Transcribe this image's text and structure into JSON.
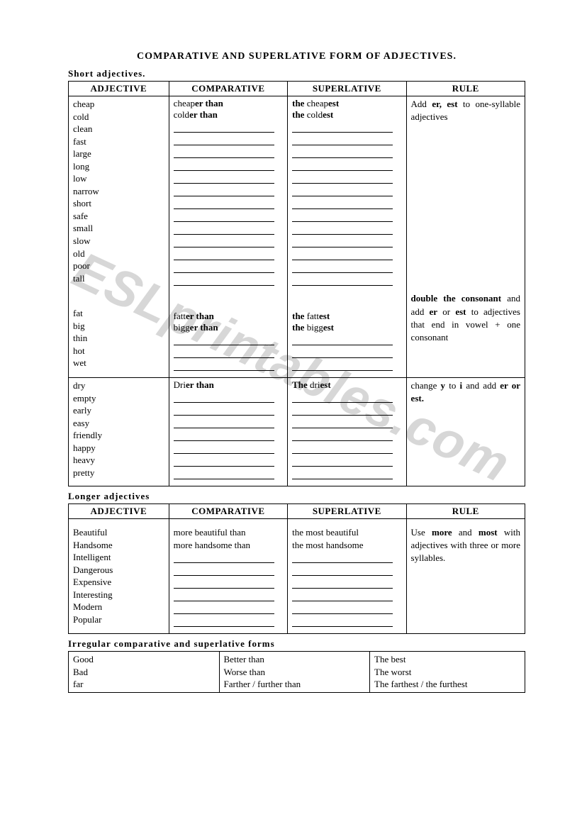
{
  "title": "COMPARATIVE AND SUPERLATIVE FORM OF ADJECTIVES.",
  "watermark": "ESLprintables.com",
  "short": {
    "label": "Short adjectives.",
    "headers": [
      "ADJECTIVE",
      "COMPARATIVE",
      "SUPERLATIVE",
      "RULE"
    ],
    "group1": {
      "adjectives": [
        "cheap",
        "cold",
        "clean",
        "fast",
        "large",
        "long",
        "low",
        "narrow",
        "short",
        "safe",
        "small",
        "slow",
        "old",
        "poor",
        "tall"
      ],
      "comparative": [
        {
          "prefix": "cheap",
          "bold": "er than"
        },
        {
          "prefix": "cold",
          "bold": "er than"
        }
      ],
      "superlative": [
        {
          "prefix": "the ",
          "mid": "cheap",
          "bold": "est"
        },
        {
          "prefix": "the ",
          "mid": "cold",
          "bold": "est"
        }
      ],
      "blank_lines": 13,
      "rule_pre": "Add ",
      "rule_bold": "er, est",
      "rule_post": " to one-syllable adjectives"
    },
    "group2": {
      "adjectives": [
        "fat",
        "big",
        "thin",
        "hot",
        "wet"
      ],
      "comparative": [
        {
          "prefix": "fatt",
          "bold": "er than"
        },
        {
          "prefix": "bigg",
          "bold": "er   than"
        }
      ],
      "superlative": [
        {
          "prefix": "the ",
          "mid": "fatt",
          "bold": "est"
        },
        {
          "prefix": "the ",
          "mid": "bigg",
          "bold": "est"
        }
      ],
      "blank_lines": 3,
      "rule_bold1": "double the consonant",
      "rule_mid": " and add ",
      "rule_bold2": "er",
      "rule_mid2": " or ",
      "rule_bold3": "est",
      "rule_end": " to adjectives that end in vowel + one consonant"
    },
    "group3": {
      "adjectives": [
        "dry",
        "empty",
        "early",
        "easy",
        "friendly",
        "happy",
        "heavy",
        "pretty"
      ],
      "comparative": [
        {
          "prefix": "Dri",
          "bold": "er than"
        }
      ],
      "superlative": [
        {
          "prefix": "The ",
          "mid": "dri",
          "bold": "est"
        }
      ],
      "blank_lines": 7,
      "rule_pre": "change ",
      "rule_bold1": "y",
      "rule_mid1": " to ",
      "rule_bold2": "i",
      "rule_mid2": " and add ",
      "rule_bold3": "er or est."
    }
  },
  "longer": {
    "label": "Longer adjectives",
    "headers": [
      "ADJECTIVE",
      "COMPARATIVE",
      "SUPERLATIVE",
      "RULE"
    ],
    "adjectives": [
      "Beautiful",
      "Handsome",
      "Intelligent",
      "Dangerous",
      "Expensive",
      "Interesting",
      "Modern",
      "Popular"
    ],
    "comparative": [
      "more beautiful  than",
      "more handsome than"
    ],
    "superlative": [
      "the most beautiful",
      "the most handsome"
    ],
    "blank_lines": 6,
    "rule_pre": "Use ",
    "rule_bold1": "more",
    "rule_mid1": " and ",
    "rule_bold2": "most",
    "rule_end": " with adjectives with three or more syllables."
  },
  "irregular": {
    "label": "Irregular comparative and superlative forms",
    "rows": [
      [
        "Good",
        "Better  than",
        "The best"
      ],
      [
        "Bad",
        "Worse than",
        "The worst"
      ],
      [
        "far",
        "Farther / further than",
        "The farthest / the furthest"
      ]
    ]
  }
}
